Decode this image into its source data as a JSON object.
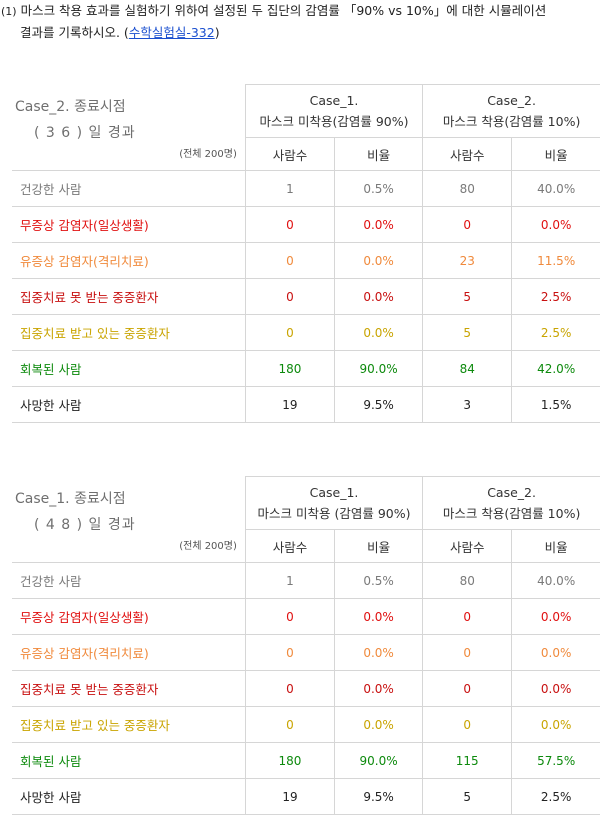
{
  "intro": {
    "number": "(1)",
    "line1": "마스크 착용 효과를 실험하기 위하여 설정된 두 집단의 감염률 「90% vs 10%」에 대한 시뮬레이션",
    "line2_prefix": "결과를 기록하시오. (",
    "link_text": "수학실험실-332",
    "line2_suffix": ")"
  },
  "colors": {
    "healthy": "#7a7a7a",
    "asymptomatic": "#e01010",
    "symptomatic": "#f08a3c",
    "critical_untreated": "#c81010",
    "critical_treated": "#c9a400",
    "recovered": "#0d8a0d",
    "dead": "#222222"
  },
  "tables": [
    {
      "title": "Case_2. 종료시점",
      "subtitle": "( 3 6 ) 일 경과",
      "total": "(전체 200명)",
      "case1_line1": "Case_1.",
      "case1_line2": "마스크 미착용(감염률 90%)",
      "case2_line1": "Case_2.",
      "case2_line2": "마스크 착용(감염률 10%)",
      "col_count": "사람수",
      "col_ratio": "비율",
      "rows": [
        {
          "label": "건강한 사람",
          "n1": "1",
          "p1": "0.5%",
          "n2": "80",
          "p2": "40.0%"
        },
        {
          "label": "무증상 감염자(일상생활)",
          "n1": "0",
          "p1": "0.0%",
          "n2": "0",
          "p2": "0.0%"
        },
        {
          "label": "유증상 감염자(격리치료)",
          "n1": "0",
          "p1": "0.0%",
          "n2": "23",
          "p2": "11.5%"
        },
        {
          "label": "집중치료 못 받는 중증환자",
          "n1": "0",
          "p1": "0.0%",
          "n2": "5",
          "p2": "2.5%"
        },
        {
          "label": "집중치료 받고 있는 중증환자",
          "n1": "0",
          "p1": "0.0%",
          "n2": "5",
          "p2": "2.5%"
        },
        {
          "label": "회복된 사람",
          "n1": "180",
          "p1": "90.0%",
          "n2": "84",
          "p2": "42.0%"
        },
        {
          "label": "사망한 사람",
          "n1": "19",
          "p1": "9.5%",
          "n2": "3",
          "p2": "1.5%"
        }
      ]
    },
    {
      "title": "Case_1. 종료시점",
      "subtitle": "( 4 8 ) 일 경과",
      "total": "(전체 200명)",
      "case1_line1": "Case_1.",
      "case1_line2": "마스크 미착용 (감염률 90%)",
      "case2_line1": "Case_2.",
      "case2_line2": "마스크 착용(감염률 10%)",
      "col_count": "사람수",
      "col_ratio": "비율",
      "rows": [
        {
          "label": "건강한 사람",
          "n1": "1",
          "p1": "0.5%",
          "n2": "80",
          "p2": "40.0%"
        },
        {
          "label": "무증상 감염자(일상생활)",
          "n1": "0",
          "p1": "0.0%",
          "n2": "0",
          "p2": "0.0%"
        },
        {
          "label": "유증상 감염자(격리치료)",
          "n1": "0",
          "p1": "0.0%",
          "n2": "0",
          "p2": "0.0%"
        },
        {
          "label": "집중치료 못 받는 중증환자",
          "n1": "0",
          "p1": "0.0%",
          "n2": "0",
          "p2": "0.0%"
        },
        {
          "label": "집중치료 받고 있는 중증환자",
          "n1": "0",
          "p1": "0.0%",
          "n2": "0",
          "p2": "0.0%"
        },
        {
          "label": "회복된 사람",
          "n1": "180",
          "p1": "90.0%",
          "n2": "115",
          "p2": "57.5%"
        },
        {
          "label": "사망한 사람",
          "n1": "19",
          "p1": "9.5%",
          "n2": "5",
          "p2": "2.5%"
        }
      ]
    }
  ]
}
